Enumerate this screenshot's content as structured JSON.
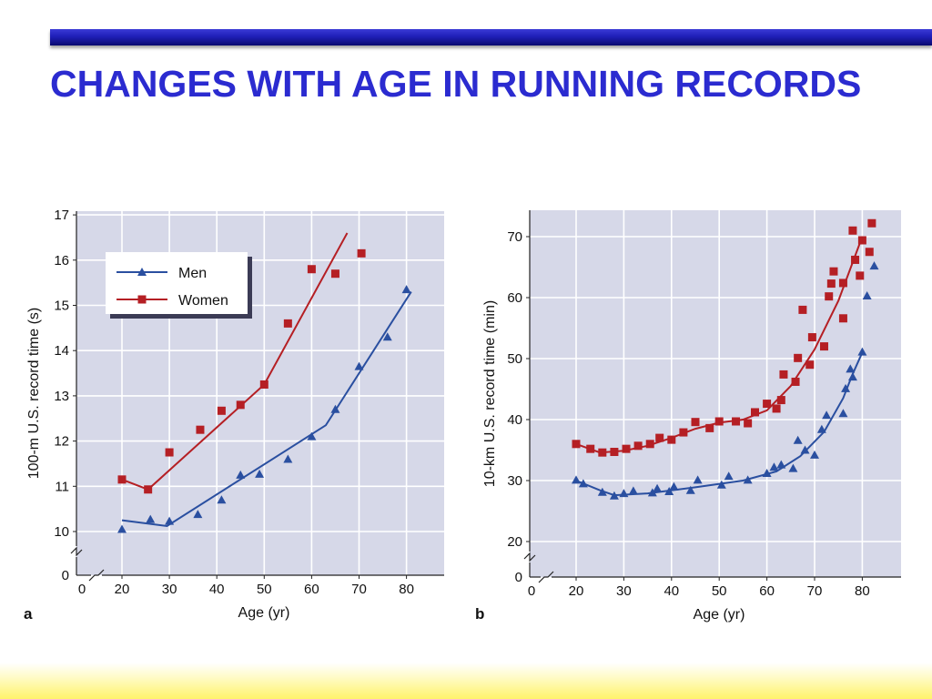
{
  "slide": {
    "title": "CHANGES WITH AGE IN RUNNING RECORDS",
    "colors": {
      "title": "#2b2bd0",
      "men": "#2a4fa0",
      "women": "#b51f24",
      "plot_bg": "#d6d8e8"
    }
  },
  "chart_data": [
    {
      "panel": "a",
      "type": "line",
      "xlabel": "Age (yr)",
      "ylabel": "100-m U.S. record time (s)",
      "xlim": [
        20,
        85
      ],
      "ylim": [
        10,
        17
      ],
      "xticks": [
        20,
        30,
        40,
        50,
        60,
        70,
        80
      ],
      "yticks": [
        10,
        11,
        12,
        13,
        14,
        15,
        16,
        17
      ],
      "axis_break": true,
      "zero_label": "0",
      "legend": {
        "position": "top-left",
        "entries": [
          "Men",
          "Women"
        ]
      },
      "series": [
        {
          "name": "Men",
          "marker": "triangle",
          "color": "#2a4fa0",
          "points": [
            [
              20,
              10.05
            ],
            [
              26,
              10.27
            ],
            [
              30,
              10.23
            ],
            [
              36,
              10.38
            ],
            [
              41,
              10.7
            ],
            [
              45,
              11.25
            ],
            [
              49,
              11.27
            ],
            [
              55,
              11.6
            ],
            [
              60,
              12.1
            ],
            [
              65,
              12.7
            ],
            [
              70,
              13.65
            ],
            [
              76,
              14.3
            ],
            [
              80,
              15.35
            ]
          ],
          "fit_line": [
            [
              20,
              10.25
            ],
            [
              29.5,
              10.12
            ],
            [
              63,
              12.35
            ],
            [
              81,
              15.3
            ]
          ]
        },
        {
          "name": "Women",
          "marker": "square",
          "color": "#b51f24",
          "points": [
            [
              20,
              11.15
            ],
            [
              25.5,
              10.93
            ],
            [
              30,
              11.75
            ],
            [
              36.5,
              12.25
            ],
            [
              41,
              12.67
            ],
            [
              45,
              12.8
            ],
            [
              50,
              13.25
            ],
            [
              55,
              14.6
            ],
            [
              60,
              15.8
            ],
            [
              65,
              15.7
            ],
            [
              70.5,
              16.15
            ]
          ],
          "fit_line": [
            [
              20,
              11.15
            ],
            [
              25.5,
              10.93
            ],
            [
              50,
              13.25
            ],
            [
              67.5,
              16.6
            ]
          ]
        }
      ]
    },
    {
      "panel": "b",
      "type": "line",
      "xlabel": "Age (yr)",
      "ylabel": "10-km U.S. record time (min)",
      "xlim": [
        20,
        85
      ],
      "ylim": [
        15,
        75
      ],
      "xticks": [
        20,
        30,
        40,
        50,
        60,
        70,
        80
      ],
      "yticks": [
        20,
        30,
        40,
        50,
        60,
        70
      ],
      "axis_break": true,
      "zero_label": "0",
      "series": [
        {
          "name": "",
          "marker": "triangle",
          "color": "#2a4fa0",
          "points": [
            [
              20,
              30.1
            ],
            [
              21.5,
              29.5
            ],
            [
              25.5,
              28.1
            ],
            [
              28,
              27.5
            ],
            [
              30,
              27.9
            ],
            [
              32,
              28.3
            ],
            [
              36,
              28.0
            ],
            [
              37,
              28.7
            ],
            [
              39.5,
              28.2
            ],
            [
              40.5,
              29.0
            ],
            [
              44,
              28.4
            ],
            [
              45.5,
              30.1
            ],
            [
              50.5,
              29.3
            ],
            [
              52,
              30.7
            ],
            [
              56,
              30.1
            ],
            [
              60,
              31.2
            ],
            [
              61.5,
              32.2
            ],
            [
              63,
              32.6
            ],
            [
              65.5,
              32.0
            ],
            [
              66.5,
              36.6
            ],
            [
              68,
              35.0
            ],
            [
              70,
              34.2
            ],
            [
              71.5,
              38.4
            ],
            [
              72.5,
              40.7
            ],
            [
              76,
              41.0
            ],
            [
              76.5,
              45.1
            ],
            [
              77.5,
              48.3
            ],
            [
              78,
              47.0
            ],
            [
              80,
              51.1
            ],
            [
              81,
              60.3
            ],
            [
              82.5,
              65.2
            ]
          ],
          "fit_line": [
            [
              20,
              30.0
            ],
            [
              25,
              28.4
            ],
            [
              28,
              27.6
            ],
            [
              35,
              27.9
            ],
            [
              45,
              28.9
            ],
            [
              55,
              30.0
            ],
            [
              62,
              31.5
            ],
            [
              67,
              34.0
            ],
            [
              72,
              38.0
            ],
            [
              76,
              43.5
            ],
            [
              78,
              47.5
            ],
            [
              80,
              51.0
            ]
          ]
        },
        {
          "name": "",
          "marker": "square",
          "color": "#b51f24",
          "points": [
            [
              20,
              36.0
            ],
            [
              23,
              35.2
            ],
            [
              25.5,
              34.6
            ],
            [
              28,
              34.7
            ],
            [
              30.5,
              35.2
            ],
            [
              33,
              35.7
            ],
            [
              35.5,
              36.0
            ],
            [
              37.5,
              37.0
            ],
            [
              40,
              36.7
            ],
            [
              42.5,
              37.9
            ],
            [
              45,
              39.6
            ],
            [
              48,
              38.6
            ],
            [
              50,
              39.7
            ],
            [
              53.5,
              39.7
            ],
            [
              56,
              39.4
            ],
            [
              57.5,
              41.2
            ],
            [
              60,
              42.6
            ],
            [
              62,
              41.8
            ],
            [
              63,
              43.2
            ],
            [
              63.5,
              47.4
            ],
            [
              66,
              46.2
            ],
            [
              66.5,
              50.1
            ],
            [
              67.5,
              58.0
            ],
            [
              69,
              49.0
            ],
            [
              69.5,
              53.5
            ],
            [
              72,
              52.0
            ],
            [
              73,
              60.2
            ],
            [
              73.5,
              62.3
            ],
            [
              74,
              64.3
            ],
            [
              76,
              62.4
            ],
            [
              76,
              56.6
            ],
            [
              78,
              71.0
            ],
            [
              78.5,
              66.2
            ],
            [
              79.5,
              63.6
            ],
            [
              80,
              69.4
            ],
            [
              81.5,
              67.5
            ],
            [
              82,
              72.2
            ]
          ],
          "fit_line": [
            [
              20,
              36.0
            ],
            [
              25,
              34.6
            ],
            [
              30,
              34.9
            ],
            [
              35,
              35.7
            ],
            [
              40,
              37.0
            ],
            [
              45,
              38.5
            ],
            [
              50,
              39.5
            ],
            [
              55,
              40.0
            ],
            [
              60,
              41.5
            ],
            [
              65,
              45.5
            ],
            [
              70,
              51.5
            ],
            [
              75,
              59.5
            ],
            [
              80,
              70.0
            ]
          ]
        }
      ]
    }
  ]
}
